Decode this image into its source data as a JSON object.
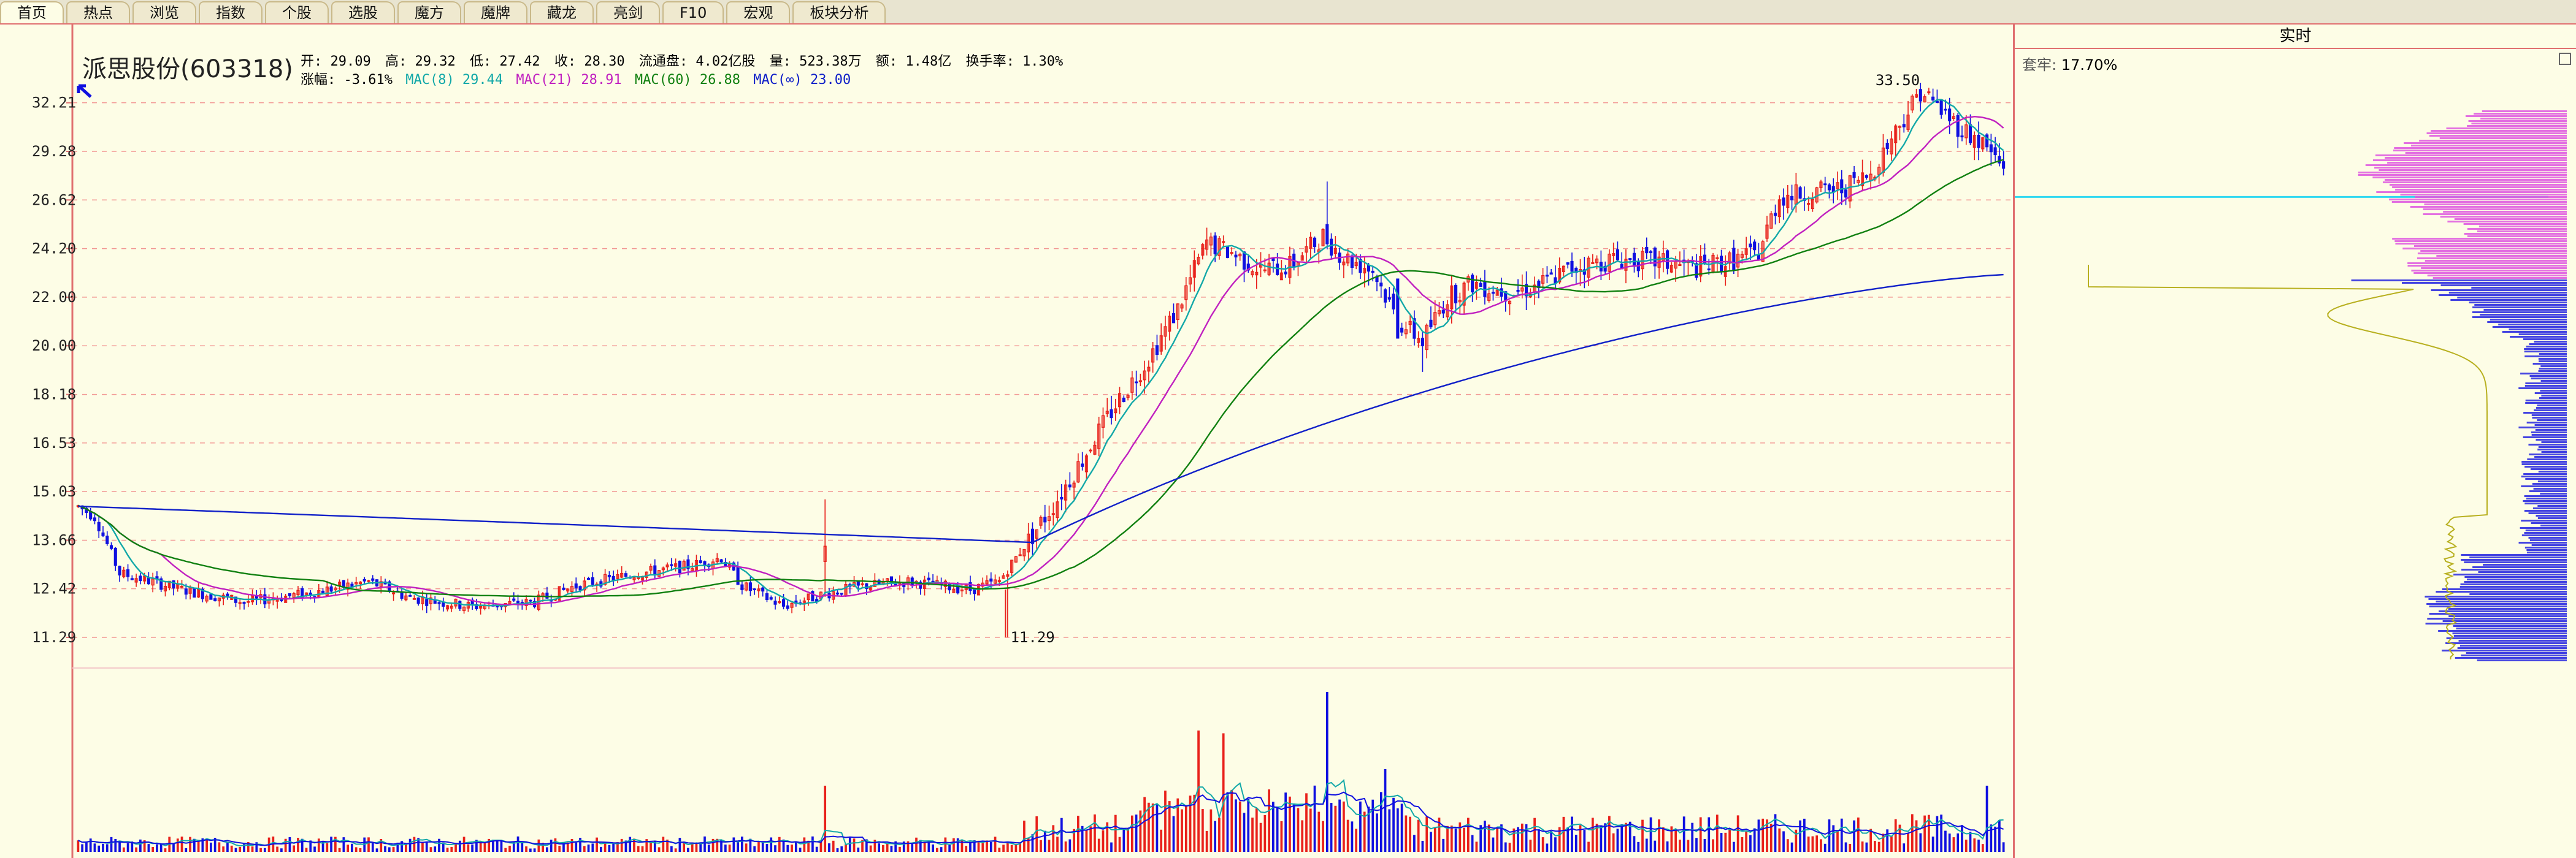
{
  "tabs": [
    {
      "label": "首页"
    },
    {
      "label": "热点"
    },
    {
      "label": "浏览"
    },
    {
      "label": "指数"
    },
    {
      "label": "个股"
    },
    {
      "label": "选股"
    },
    {
      "label": "魔方"
    },
    {
      "label": "魔牌"
    },
    {
      "label": "藏龙"
    },
    {
      "label": "亮剑"
    },
    {
      "label": "F10"
    },
    {
      "label": "宏观"
    },
    {
      "label": "板块分析"
    }
  ],
  "stock": {
    "name_code": "派思股份(603318)",
    "open": "开: 29.09",
    "high": "高: 29.32",
    "low": "低: 27.42",
    "close": "收: 28.30",
    "float_cap": "流通盘: 4.02亿股",
    "volume": "量: 523.38万",
    "amount": "额: 1.48亿",
    "turnover": "换手率: 1.30%",
    "change": "涨幅: -3.61%",
    "ma8": "MAC(8) 29.44",
    "ma21": "MAC(21) 28.91",
    "ma60": "MAC(60) 26.88",
    "ma_inf": "MAC(∞) 23.00"
  },
  "colors": {
    "up": "#e8201a",
    "down": "#1010e0",
    "ma8": "#12a8a8",
    "ma21": "#c020c0",
    "ma60": "#108010",
    "ma_inf": "#1020c8",
    "grid": "#f08080",
    "axis": "#e07070",
    "volume_ma": "#12a8a8",
    "profile_pink": "#e060e0",
    "profile_blue": "#3030e0",
    "profile_yellow": "#b8b020"
  },
  "y_axis": {
    "labels": [
      "32.21",
      "29.28",
      "26.62",
      "24.20",
      "22.00",
      "20.00",
      "18.18",
      "16.53",
      "15.03",
      "13.66",
      "12.42",
      "11.29"
    ]
  },
  "annotations": {
    "high_marker": "33.50",
    "low_marker": "11.29"
  },
  "right_panel": {
    "header": "实时",
    "trapped_label": "套牢:",
    "trapped_value": "17.70%"
  },
  "chart_data": {
    "type": "candlestick",
    "price_scale": "log",
    "ylim": [
      11.29,
      33.5
    ],
    "ma_series": [
      {
        "name": "MAC(8)",
        "last": 29.44
      },
      {
        "name": "MAC(21)",
        "last": 28.91
      },
      {
        "name": "MAC(60)",
        "last": 26.88
      },
      {
        "name": "MAC(∞)",
        "last": 23.0
      }
    ],
    "anchors": [
      [
        0,
        14.6
      ],
      [
        4,
        14.3
      ],
      [
        10,
        12.8
      ],
      [
        25,
        12.4
      ],
      [
        40,
        12.1
      ],
      [
        55,
        12.3
      ],
      [
        70,
        12.6
      ],
      [
        80,
        12.2
      ],
      [
        95,
        12.0
      ],
      [
        110,
        12.1
      ],
      [
        120,
        12.5
      ],
      [
        135,
        12.8
      ],
      [
        148,
        13.0
      ],
      [
        155,
        13.2
      ],
      [
        160,
        12.5
      ],
      [
        170,
        12.0
      ],
      [
        180,
        12.3
      ],
      [
        190,
        12.5
      ],
      [
        200,
        12.6
      ],
      [
        215,
        12.4
      ],
      [
        222,
        12.6
      ],
      [
        230,
        13.8
      ],
      [
        236,
        14.8
      ],
      [
        242,
        16.0
      ],
      [
        250,
        17.8
      ],
      [
        258,
        19.5
      ],
      [
        265,
        21.5
      ],
      [
        272,
        24.5
      ],
      [
        278,
        24.0
      ],
      [
        285,
        23.2
      ],
      [
        292,
        23.4
      ],
      [
        300,
        24.8
      ],
      [
        305,
        23.8
      ],
      [
        312,
        23.2
      ],
      [
        318,
        21.0
      ],
      [
        324,
        20.2
      ],
      [
        330,
        22.0
      ],
      [
        336,
        22.6
      ],
      [
        345,
        22.2
      ],
      [
        352,
        22.5
      ],
      [
        360,
        23.3
      ],
      [
        370,
        23.7
      ],
      [
        380,
        23.6
      ],
      [
        390,
        23.3
      ],
      [
        398,
        23.6
      ],
      [
        405,
        24.0
      ],
      [
        410,
        26.8
      ],
      [
        418,
        27.0
      ],
      [
        425,
        27.2
      ],
      [
        432,
        28.0
      ],
      [
        438,
        30.5
      ],
      [
        444,
        33.0
      ],
      [
        448,
        32.0
      ],
      [
        453,
        30.8
      ],
      [
        460,
        29.5
      ],
      [
        464,
        28.3
      ]
    ]
  }
}
